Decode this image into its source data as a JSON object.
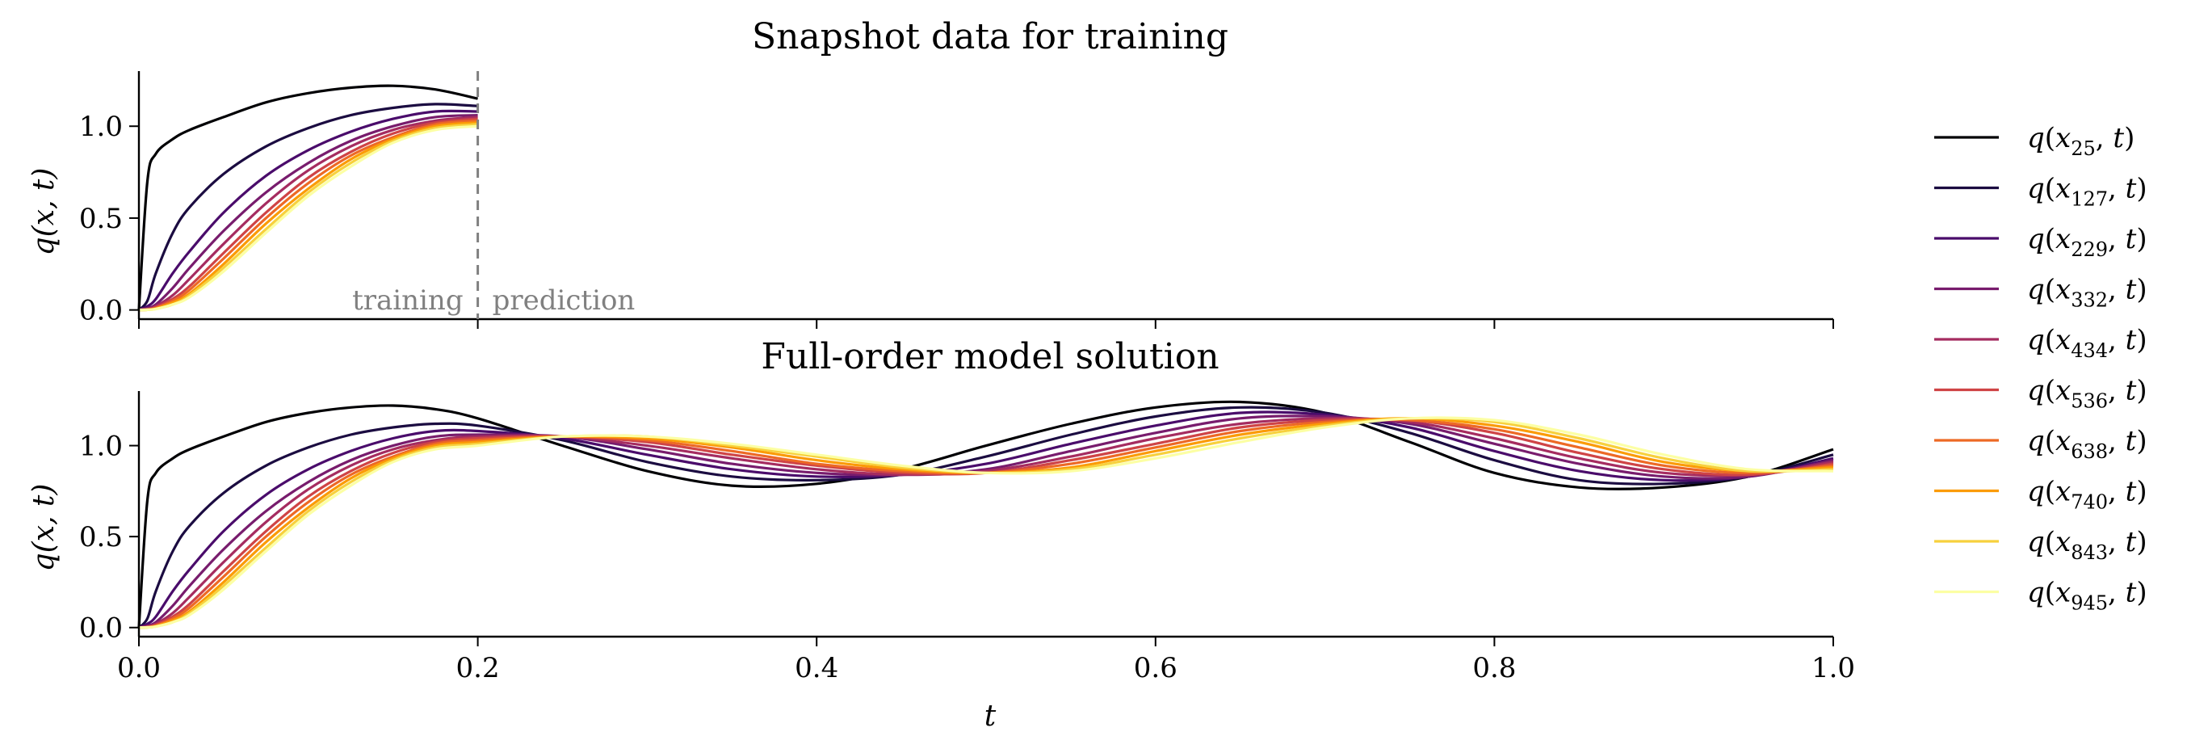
{
  "chart_data": [
    {
      "type": "line",
      "title": "Snapshot data for training",
      "xlabel": "",
      "ylabel": "q(x, t)",
      "xlim": [
        0.0,
        1.0
      ],
      "ylim": [
        -0.05,
        1.3
      ],
      "yticks": [
        "0.0",
        "0.5",
        "1.0"
      ],
      "x_tick_values": [
        0.0,
        0.2,
        0.4,
        0.6,
        0.8,
        1.0
      ],
      "show_x_tick_labels": false,
      "t_max_plotted": 0.2,
      "split": {
        "t": 0.2,
        "left_label": "training",
        "right_label": "prediction"
      },
      "x": [
        0,
        0.005,
        0.01,
        0.02,
        0.03,
        0.05,
        0.075,
        0.1,
        0.125,
        0.15,
        0.175,
        0.2
      ],
      "series": [
        {
          "name": "q(x25, t)",
          "color": "#000004",
          "values": [
            0,
            0.7,
            0.85,
            0.93,
            0.98,
            1.05,
            1.13,
            1.18,
            1.21,
            1.22,
            1.2,
            1.15
          ]
        },
        {
          "name": "q(x127, t)",
          "color": "#1b0c41",
          "values": [
            0,
            0.05,
            0.2,
            0.42,
            0.56,
            0.74,
            0.89,
            0.99,
            1.06,
            1.1,
            1.12,
            1.11
          ]
        },
        {
          "name": "q(x229, t)",
          "color": "#4a0c6b",
          "values": [
            0,
            0.02,
            0.06,
            0.2,
            0.32,
            0.53,
            0.73,
            0.87,
            0.97,
            1.04,
            1.08,
            1.08
          ]
        },
        {
          "name": "q(x332, t)",
          "color": "#781c6d",
          "values": [
            0,
            0.01,
            0.03,
            0.12,
            0.23,
            0.43,
            0.64,
            0.8,
            0.92,
            1.0,
            1.05,
            1.06
          ]
        },
        {
          "name": "q(x434, t)",
          "color": "#a52c60",
          "values": [
            0,
            0.005,
            0.02,
            0.08,
            0.17,
            0.36,
            0.58,
            0.76,
            0.89,
            0.98,
            1.03,
            1.05
          ]
        },
        {
          "name": "q(x536, t)",
          "color": "#cf4446",
          "values": [
            0,
            0.003,
            0.015,
            0.06,
            0.13,
            0.31,
            0.53,
            0.72,
            0.86,
            0.96,
            1.02,
            1.04
          ]
        },
        {
          "name": "q(x638, t)",
          "color": "#ed6925",
          "values": [
            0,
            0.002,
            0.01,
            0.05,
            0.11,
            0.28,
            0.5,
            0.69,
            0.84,
            0.94,
            1.01,
            1.03
          ]
        },
        {
          "name": "q(x740, t)",
          "color": "#fb9b06",
          "values": [
            0,
            0.001,
            0.008,
            0.04,
            0.09,
            0.25,
            0.47,
            0.66,
            0.82,
            0.93,
            1.0,
            1.02
          ]
        },
        {
          "name": "q(x843, t)",
          "color": "#f7d13d",
          "values": [
            0,
            0.001,
            0.006,
            0.03,
            0.08,
            0.23,
            0.44,
            0.64,
            0.8,
            0.92,
            0.99,
            1.01
          ]
        },
        {
          "name": "q(x945, t)",
          "color": "#fcffa4",
          "values": [
            0,
            0.001,
            0.005,
            0.03,
            0.07,
            0.21,
            0.42,
            0.62,
            0.78,
            0.91,
            0.98,
            1.0
          ]
        }
      ]
    },
    {
      "type": "line",
      "title": "Full-order model solution",
      "xlabel": "t",
      "ylabel": "q(x, t)",
      "xlim": [
        0.0,
        1.0
      ],
      "ylim": [
        -0.05,
        1.3
      ],
      "yticks": [
        "0.0",
        "0.5",
        "1.0"
      ],
      "x_tick_values": [
        0.0,
        0.2,
        0.4,
        0.6,
        0.8,
        1.0
      ],
      "xticks": [
        "0.0",
        "0.2",
        "0.4",
        "0.6",
        "0.8",
        "1.0"
      ],
      "show_x_tick_labels": true,
      "t_max_plotted": 1.0,
      "x": [
        0,
        0.005,
        0.01,
        0.02,
        0.03,
        0.05,
        0.075,
        0.1,
        0.125,
        0.15,
        0.175,
        0.2,
        0.25,
        0.3,
        0.35,
        0.4,
        0.45,
        0.5,
        0.55,
        0.6,
        0.65,
        0.7,
        0.75,
        0.8,
        0.85,
        0.9,
        0.95,
        1.0
      ],
      "series": [
        {
          "name": "q(x25, t)",
          "color": "#000004",
          "values": [
            0,
            0.7,
            0.85,
            0.93,
            0.98,
            1.05,
            1.13,
            1.18,
            1.21,
            1.22,
            1.2,
            1.15,
            1.0,
            0.86,
            0.78,
            0.79,
            0.87,
            1.0,
            1.12,
            1.21,
            1.24,
            1.18,
            1.02,
            0.85,
            0.77,
            0.77,
            0.83,
            0.98
          ]
        },
        {
          "name": "q(x127, t)",
          "color": "#1b0c41",
          "values": [
            0,
            0.05,
            0.2,
            0.42,
            0.56,
            0.74,
            0.89,
            0.99,
            1.06,
            1.1,
            1.12,
            1.11,
            1.03,
            0.91,
            0.83,
            0.81,
            0.84,
            0.94,
            1.06,
            1.16,
            1.21,
            1.18,
            1.07,
            0.92,
            0.81,
            0.79,
            0.83,
            0.95
          ]
        },
        {
          "name": "q(x229, t)",
          "color": "#4a0c6b",
          "values": [
            0,
            0.02,
            0.06,
            0.2,
            0.32,
            0.53,
            0.73,
            0.87,
            0.97,
            1.04,
            1.08,
            1.08,
            1.04,
            0.95,
            0.87,
            0.83,
            0.84,
            0.9,
            1.01,
            1.11,
            1.18,
            1.17,
            1.1,
            0.97,
            0.86,
            0.81,
            0.83,
            0.93
          ]
        },
        {
          "name": "q(x332, t)",
          "color": "#781c6d",
          "values": [
            0,
            0.01,
            0.03,
            0.12,
            0.23,
            0.43,
            0.64,
            0.8,
            0.92,
            1.0,
            1.05,
            1.06,
            1.05,
            0.98,
            0.9,
            0.85,
            0.84,
            0.87,
            0.97,
            1.07,
            1.15,
            1.16,
            1.12,
            1.01,
            0.9,
            0.83,
            0.83,
            0.92
          ]
        },
        {
          "name": "q(x434, t)",
          "color": "#a52c60",
          "values": [
            0,
            0.005,
            0.02,
            0.08,
            0.17,
            0.36,
            0.58,
            0.76,
            0.89,
            0.98,
            1.03,
            1.05,
            1.05,
            1.0,
            0.93,
            0.87,
            0.84,
            0.86,
            0.94,
            1.04,
            1.12,
            1.15,
            1.13,
            1.04,
            0.93,
            0.85,
            0.84,
            0.91
          ]
        },
        {
          "name": "q(x536, t)",
          "color": "#cf4446",
          "values": [
            0,
            0.003,
            0.015,
            0.06,
            0.13,
            0.31,
            0.53,
            0.72,
            0.86,
            0.96,
            1.02,
            1.04,
            1.05,
            1.02,
            0.95,
            0.89,
            0.85,
            0.85,
            0.92,
            1.01,
            1.1,
            1.14,
            1.14,
            1.07,
            0.96,
            0.87,
            0.84,
            0.9
          ]
        },
        {
          "name": "q(x638, t)",
          "color": "#ed6925",
          "values": [
            0,
            0.002,
            0.01,
            0.05,
            0.11,
            0.28,
            0.5,
            0.69,
            0.84,
            0.94,
            1.01,
            1.03,
            1.05,
            1.03,
            0.97,
            0.9,
            0.86,
            0.85,
            0.9,
            0.99,
            1.08,
            1.13,
            1.14,
            1.09,
            0.99,
            0.89,
            0.85,
            0.89
          ]
        },
        {
          "name": "q(x740, t)",
          "color": "#fb9b06",
          "values": [
            0,
            0.001,
            0.008,
            0.04,
            0.09,
            0.25,
            0.47,
            0.66,
            0.82,
            0.93,
            1.0,
            1.02,
            1.05,
            1.04,
            0.99,
            0.92,
            0.87,
            0.85,
            0.88,
            0.97,
            1.06,
            1.12,
            1.15,
            1.11,
            1.02,
            0.91,
            0.86,
            0.88
          ]
        },
        {
          "name": "q(x843, t)",
          "color": "#f7d13d",
          "values": [
            0,
            0.001,
            0.006,
            0.03,
            0.08,
            0.23,
            0.44,
            0.64,
            0.8,
            0.92,
            0.99,
            1.01,
            1.05,
            1.05,
            1.0,
            0.94,
            0.88,
            0.85,
            0.87,
            0.95,
            1.04,
            1.11,
            1.15,
            1.13,
            1.04,
            0.93,
            0.86,
            0.87
          ]
        },
        {
          "name": "q(x945, t)",
          "color": "#fcffa4",
          "values": [
            0,
            0.001,
            0.005,
            0.03,
            0.07,
            0.21,
            0.42,
            0.62,
            0.78,
            0.91,
            0.98,
            1.0,
            1.05,
            1.05,
            1.01,
            0.95,
            0.89,
            0.85,
            0.86,
            0.93,
            1.02,
            1.1,
            1.15,
            1.14,
            1.06,
            0.95,
            0.87,
            0.86
          ]
        }
      ]
    }
  ],
  "legend": {
    "placement": "right",
    "entries": [
      {
        "var": "x",
        "sub": "25"
      },
      {
        "var": "x",
        "sub": "127"
      },
      {
        "var": "x",
        "sub": "229"
      },
      {
        "var": "x",
        "sub": "332"
      },
      {
        "var": "x",
        "sub": "434"
      },
      {
        "var": "x",
        "sub": "536"
      },
      {
        "var": "x",
        "sub": "638"
      },
      {
        "var": "x",
        "sub": "740"
      },
      {
        "var": "x",
        "sub": "843"
      },
      {
        "var": "x",
        "sub": "945"
      }
    ]
  }
}
